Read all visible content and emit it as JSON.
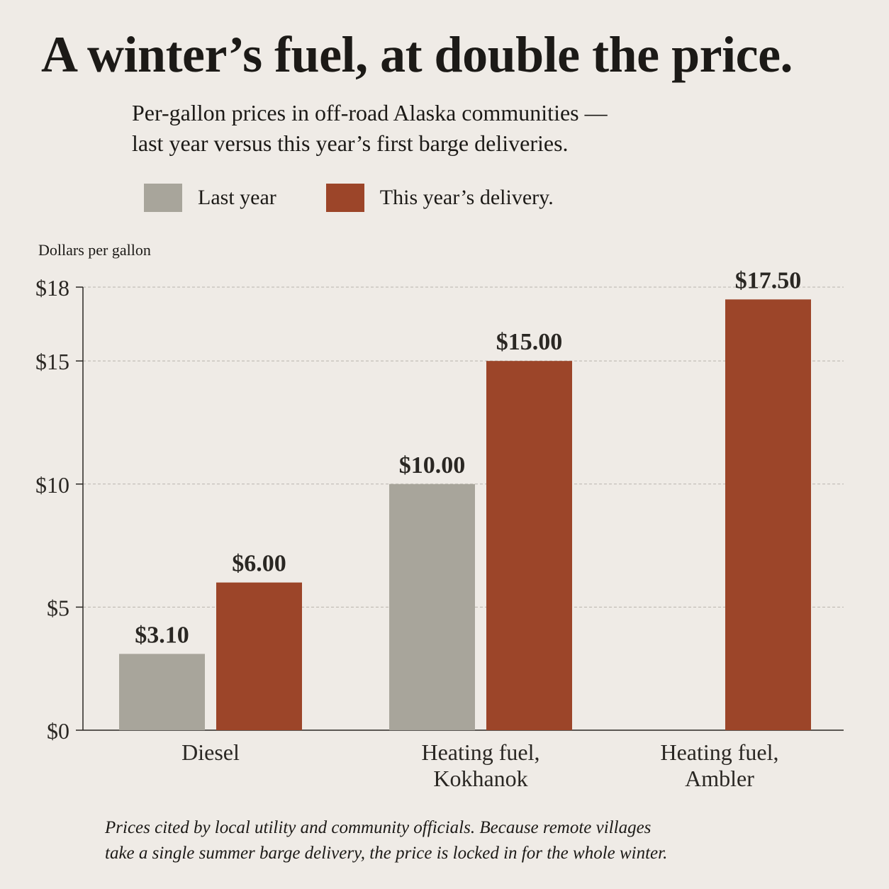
{
  "title": "A winter’s fuel, at double the price.",
  "subtitle_line1": "Per-gallon prices in off-road Alaska communities —",
  "subtitle_line2": "last year versus this year’s first barge deliveries.",
  "ylabel": "Dollars per gallon",
  "footnote_line1": "Prices cited by local utility and community officials. Because remote villages",
  "footnote_line2": "take a single summer barge delivery, the price is locked in for the whole winter.",
  "colors": {
    "last_year": "#a8a59b",
    "this_year": "#9c4529",
    "grid": "#b9b4ad",
    "axis": "#2a2723"
  },
  "chart_data": {
    "type": "bar",
    "title": "A winter’s fuel, at double the price.",
    "ylabel": "Dollars per gallon",
    "xlabel": "",
    "ylim": [
      0,
      18
    ],
    "yticks": [
      0,
      5,
      10,
      15,
      18
    ],
    "ytick_labels": [
      "$0",
      "$5",
      "$10",
      "$15",
      "$18"
    ],
    "grid": true,
    "legend_position": "top",
    "categories": [
      [
        "Diesel"
      ],
      [
        "Heating fuel,",
        "Kokhanok"
      ],
      [
        "Heating fuel,",
        "Ambler"
      ]
    ],
    "series": [
      {
        "name": "Last year",
        "values": [
          3.1,
          10.0,
          null
        ],
        "labels": [
          "$3.10",
          "$10.00",
          ""
        ]
      },
      {
        "name": "This year’s delivery.",
        "values": [
          6.0,
          15.0,
          17.5
        ],
        "labels": [
          "$6.00",
          "$15.00",
          "$17.50"
        ]
      }
    ]
  }
}
